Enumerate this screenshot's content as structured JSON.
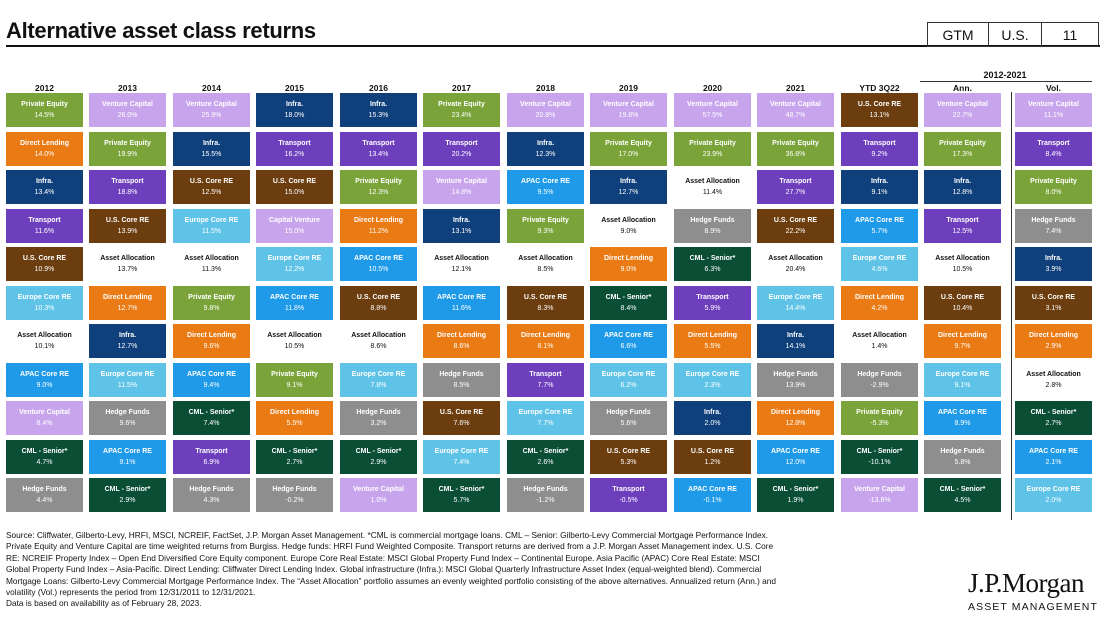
{
  "title": "Alternative asset class returns",
  "badges": {
    "gtm": "GTM",
    "region": "U.S.",
    "page": "11"
  },
  "colors": {
    "Private Equity": "#7aa43a",
    "Venture Capital": "#c7a4ec",
    "Infra.": "#10407b",
    "Direct Lending": "#e97a14",
    "Transport": "#6e3fbd",
    "U.S. Core RE": "#6b3d0f",
    "Europe Core RE": "#5fc3e8",
    "Asset Allocation": "#ffffff",
    "APAC Core RE": "#1e9ae8",
    "CML - Senior*": "#0a4e36",
    "Hedge Funds": "#8e8e8e",
    "Capital Venture": "#c7a4ec"
  },
  "chart_data": {
    "type": "table",
    "period_label": "2012-2021",
    "columns": [
      "2012",
      "2013",
      "2014",
      "2015",
      "2016",
      "2017",
      "2018",
      "2019",
      "2020",
      "2021",
      "YTD 3Q22",
      "Ann.",
      "Vol."
    ],
    "cells": [
      [
        [
          "Private Equity",
          "14.5%"
        ],
        [
          "Direct Lending",
          "14.0%"
        ],
        [
          "Infra.",
          "13.4%"
        ],
        [
          "Transport",
          "11.6%"
        ],
        [
          "U.S. Core RE",
          "10.9%"
        ],
        [
          "Europe Core RE",
          "10.3%"
        ],
        [
          "Asset Allocation",
          "10.1%"
        ],
        [
          "APAC Core RE",
          "9.0%"
        ],
        [
          "Venture  Capital",
          "8.4%"
        ],
        [
          "CML - Senior*",
          "4.7%"
        ],
        [
          "Hedge Funds",
          "4.4%"
        ]
      ],
      [
        [
          "Venture Capital",
          "26.0%"
        ],
        [
          "Private Equity",
          "19.9%"
        ],
        [
          "Transport",
          "18.8%"
        ],
        [
          "U.S. Core RE",
          "13.9%"
        ],
        [
          "Asset Allocation",
          "13.7%"
        ],
        [
          "Direct Lending",
          "12.7%"
        ],
        [
          "Infra.",
          "12.7%"
        ],
        [
          "Europe Core RE",
          "11.5%"
        ],
        [
          "Hedge Funds",
          "9.6%"
        ],
        [
          "APAC Core RE",
          "9.1%"
        ],
        [
          "CML - Senior*",
          "2.9%"
        ]
      ],
      [
        [
          "Venture Capital",
          "25.9%"
        ],
        [
          "Infra.",
          "15.5%"
        ],
        [
          "U.S. Core RE",
          "12.5%"
        ],
        [
          "Europe Core RE",
          "11.5%"
        ],
        [
          "Asset Allocation",
          "11.3%"
        ],
        [
          "Private Equity",
          "9.8%"
        ],
        [
          "Direct Lending",
          "9.6%"
        ],
        [
          "APAC Core RE",
          "9.4%"
        ],
        [
          "CML - Senior*",
          "7.4%"
        ],
        [
          "Transport",
          "6.9%"
        ],
        [
          "Hedge Funds",
          "4.3%"
        ]
      ],
      [
        [
          "Infra.",
          "18.0%"
        ],
        [
          "Transport",
          "16.2%"
        ],
        [
          "U.S. Core RE",
          "15.0%"
        ],
        [
          "Capital Venture",
          "15.0%"
        ],
        [
          "Europe Core RE",
          "12.2%"
        ],
        [
          "APAC Core RE",
          "11.8%"
        ],
        [
          "Asset Allocation",
          "10.5%"
        ],
        [
          "Private Equity",
          "9.1%"
        ],
        [
          "Direct Lending",
          "5.5%"
        ],
        [
          "CML - Senior*",
          "2.7%"
        ],
        [
          "Hedge Funds",
          "-0.2%"
        ]
      ],
      [
        [
          "Infra.",
          "15.3%"
        ],
        [
          "Transport",
          "13.4%"
        ],
        [
          "Private Equity",
          "12.3%"
        ],
        [
          "Direct Lending",
          "11.2%"
        ],
        [
          "APAC Core RE",
          "10.5%"
        ],
        [
          "U.S. Core RE",
          "8.8%"
        ],
        [
          "Asset Allocation",
          "8.6%"
        ],
        [
          "Europe Core RE",
          "7.8%"
        ],
        [
          "Hedge Funds",
          "3.2%"
        ],
        [
          "CML - Senior*",
          "2.9%"
        ],
        [
          "Venture Capital",
          "1.0%"
        ]
      ],
      [
        [
          "Private Equity",
          "23.4%"
        ],
        [
          "Transport",
          "20.2%"
        ],
        [
          "Venture Capital",
          "14.8%"
        ],
        [
          "Infra.",
          "13.1%"
        ],
        [
          "Asset Allocation",
          "12.1%"
        ],
        [
          "APAC Core RE",
          "11.6%"
        ],
        [
          "Direct Lending",
          "8.6%"
        ],
        [
          "Hedge Funds",
          "8.5%"
        ],
        [
          "U.S. Core RE",
          "7.6%"
        ],
        [
          "Europe Core RE",
          "7.4%"
        ],
        [
          "CML - Senior*",
          "5.7%"
        ]
      ],
      [
        [
          "Venture Capital",
          "20.8%"
        ],
        [
          "Infra.",
          "12.3%"
        ],
        [
          "APAC Core RE",
          "9.5%"
        ],
        [
          "Private Equity",
          "9.3%"
        ],
        [
          "Asset Allocation",
          "8.5%"
        ],
        [
          "U.S. Core RE",
          "8.3%"
        ],
        [
          "Direct Lending",
          "8.1%"
        ],
        [
          "Transport",
          "7.7%"
        ],
        [
          "Europe Core RE",
          "7.7%"
        ],
        [
          "CML - Senior*",
          "2.6%"
        ],
        [
          "Hedge Funds",
          "-1.2%"
        ]
      ],
      [
        [
          "Venture Capital",
          "19.8%"
        ],
        [
          "Private Equity",
          "17.0%"
        ],
        [
          "Infra.",
          "12.7%"
        ],
        [
          "Asset Allocation",
          "9.0%"
        ],
        [
          "Direct Lending",
          "9.0%"
        ],
        [
          "CML - Senior*",
          "8.4%"
        ],
        [
          "APAC Core RE",
          "6.6%"
        ],
        [
          "Europe Core RE",
          "6.2%"
        ],
        [
          "Hedge Funds",
          "5.6%"
        ],
        [
          "U.S. Core RE",
          "5.3%"
        ],
        [
          "Transport",
          "-0.5%"
        ]
      ],
      [
        [
          "Venture Capital",
          "57.5%"
        ],
        [
          "Private Equity",
          "23.9%"
        ],
        [
          "Asset Allocation",
          "11.4%"
        ],
        [
          "Hedge Funds",
          "8.9%"
        ],
        [
          "CML - Senior*",
          "6.3%"
        ],
        [
          "Transport",
          "5.9%"
        ],
        [
          "Direct Lending",
          "5.5%"
        ],
        [
          "Europe Core RE",
          "2.3%"
        ],
        [
          "Infra.",
          "2.0%"
        ],
        [
          "U.S. Core RE",
          "1.2%"
        ],
        [
          "APAC Core RE",
          "-0.1%"
        ]
      ],
      [
        [
          "Venture Capital",
          "48.7%"
        ],
        [
          "Private Equity",
          "36.8%"
        ],
        [
          "Transport",
          "27.7%"
        ],
        [
          "U.S. Core RE",
          "22.2%"
        ],
        [
          "Asset Allocation",
          "20.4%"
        ],
        [
          "Europe Core RE",
          "14.4%"
        ],
        [
          "Infra.",
          "14.1%"
        ],
        [
          "Hedge Funds",
          "13.9%"
        ],
        [
          "Direct Lending",
          "12.8%"
        ],
        [
          "APAC Core RE",
          "12.0%"
        ],
        [
          "CML - Senior*",
          "1.9%"
        ]
      ],
      [
        [
          "U.S. Core RE",
          "13.1%"
        ],
        [
          "Transport",
          "9.2%"
        ],
        [
          "Infra.",
          "9.1%"
        ],
        [
          "APAC Core RE",
          "5.7%"
        ],
        [
          "Europe Core RE",
          "4.6%"
        ],
        [
          "Direct Lending",
          "4.2%"
        ],
        [
          "Asset Allocation",
          "1.4%"
        ],
        [
          "Hedge Funds",
          "-2.9%"
        ],
        [
          "Private Equity",
          "-5.3%"
        ],
        [
          "CML - Senior*",
          "-10.1%"
        ],
        [
          "Venture Capital",
          "-13.6%"
        ]
      ],
      [
        [
          "Venture Capital",
          "22.7%"
        ],
        [
          "Private Equity",
          "17.3%"
        ],
        [
          "Infra.",
          "12.8%"
        ],
        [
          "Transport",
          "12.5%"
        ],
        [
          "Asset Allocation",
          "10.5%"
        ],
        [
          "U.S. Core RE",
          "10.4%"
        ],
        [
          "Direct Lending",
          "9.7%"
        ],
        [
          "Europe Core RE",
          "9.1%"
        ],
        [
          "APAC Core RE",
          "8.9%"
        ],
        [
          "Hedge Funds",
          "5.8%"
        ],
        [
          "CML - Senior*",
          "4.5%"
        ]
      ],
      [
        [
          "Venture Capital",
          "11.1%"
        ],
        [
          "Transport",
          "8.4%"
        ],
        [
          "Private Equity",
          "8.0%"
        ],
        [
          "Hedge Funds",
          "7.4%"
        ],
        [
          "Infra.",
          "3.9%"
        ],
        [
          "U.S. Core RE",
          "3.1%"
        ],
        [
          "Direct Lending",
          "2.9%"
        ],
        [
          "Asset Allocation",
          "2.8%"
        ],
        [
          "CML - Senior*",
          "2.7%"
        ],
        [
          "APAC Core RE",
          "2.1%"
        ],
        [
          "Europe Core RE",
          "2.0%"
        ]
      ]
    ]
  },
  "footnote": [
    "Source: Cliffwater, Gilberto-Levy, HRFI, MSCI, NCREIF, FactSet, J.P. Morgan Asset Management. *CML is commercial mortgage loans. CML – Senior: Gilberto-Levy Commercial Mortgage Performance Index.",
    "Private Equity and Venture Capital are time weighted returns from Burgiss. Hedge funds: HRFI Fund Weighted Composite. Transport returns are derived from a J.P. Morgan Asset Management index. U.S. Core",
    "RE: NCREIF Property Index – Open End Diversified Core Equity component. Europe Core Real Estate: MSCI Global Property Fund Index – Continental Europe. Asia Pacific (APAC) Core Real Estate: MSCI",
    "Global Property Fund Index – Asia-Pacific. Direct Lending: Cliffwater Direct Lending Index. Global infrastructure (Infra.): MSCI Global Quarterly Infrastructure Asset Index (equal-weighted blend). Commercial",
    "Mortgage Loans: Gilberto-Levy Commercial Mortgage Performance Index. The “Asset Allocation” portfolio assumes an evenly weighted portfolio consisting of the above alternatives. Annualized return (Ann.) and",
    "volatility (Vol.) represents the period from 12/31/2011 to 12/31/2021.",
    "Data is based on availability as of February 28, 2023."
  ],
  "logo": {
    "name": "J.P.Morgan",
    "sub": "ASSET MANAGEMENT"
  }
}
